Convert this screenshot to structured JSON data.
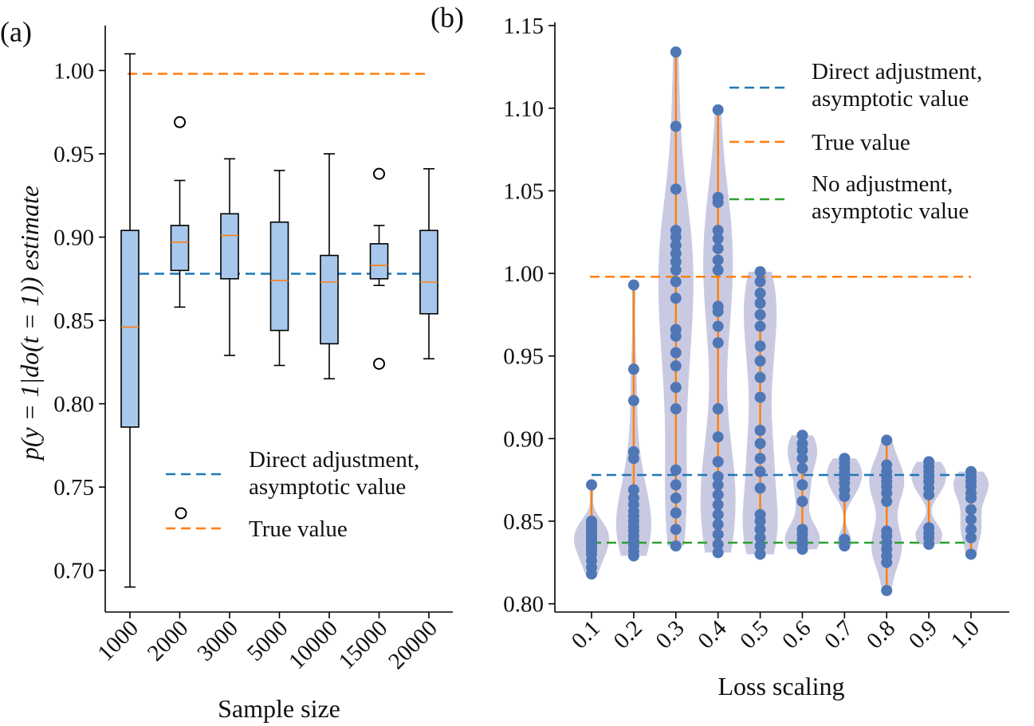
{
  "colors": {
    "box_fill": "#a7c8ec",
    "direct": "#1f77b4",
    "true": "#ff7f0e",
    "noadj": "#2ca02c",
    "violin_fill": "#b7b8d8",
    "dots": "#4f77b6",
    "whisker": "#000000"
  },
  "chart_data": [
    {
      "panel_label": "(a)",
      "type": "box",
      "xlabel": "Sample size",
      "ylabel": "p(y = 1|do(t = 1)) estimate",
      "ylim": [
        0.675,
        1.027
      ],
      "yticks": [
        "0.70",
        "0.75",
        "0.80",
        "0.85",
        "0.90",
        "0.95",
        "1.00"
      ],
      "categories": [
        "1000",
        "2000",
        "3000",
        "5000",
        "10000",
        "15000",
        "20000"
      ],
      "boxes": [
        {
          "whislo": 0.69,
          "q1": 0.786,
          "med": 0.846,
          "q3": 0.904,
          "whishi": 1.01,
          "fliers": []
        },
        {
          "whislo": 0.858,
          "q1": 0.88,
          "med": 0.897,
          "q3": 0.907,
          "whishi": 0.934,
          "fliers": [
            0.969
          ]
        },
        {
          "whislo": 0.829,
          "q1": 0.875,
          "med": 0.901,
          "q3": 0.914,
          "whishi": 0.947,
          "fliers": []
        },
        {
          "whislo": 0.823,
          "q1": 0.844,
          "med": 0.874,
          "q3": 0.909,
          "whishi": 0.94,
          "fliers": []
        },
        {
          "whislo": 0.815,
          "q1": 0.836,
          "med": 0.873,
          "q3": 0.889,
          "whishi": 0.95,
          "fliers": []
        },
        {
          "whislo": 0.871,
          "q1": 0.875,
          "med": 0.883,
          "q3": 0.896,
          "whishi": 0.907,
          "fliers": [
            0.938,
            0.824
          ]
        },
        {
          "whislo": 0.827,
          "q1": 0.854,
          "med": 0.873,
          "q3": 0.904,
          "whishi": 0.941,
          "fliers": []
        }
      ],
      "reference_lines": [
        {
          "name": "Direct adjustment, asymptotic value",
          "value": 0.878,
          "color": "#1f77b4"
        },
        {
          "name": "True value",
          "value": 0.998,
          "color": "#ff7f0e"
        }
      ],
      "legend": {
        "placement": "lower-right",
        "entries": [
          "Direct adjustment,",
          "asymptotic value",
          "True value"
        ]
      }
    },
    {
      "panel_label": "(b)",
      "type": "violin",
      "xlabel": "Loss scaling",
      "ylim": [
        0.795,
        1.152
      ],
      "yticks": [
        "0.80",
        "0.85",
        "0.90",
        "0.95",
        "1.00",
        "1.05",
        "1.10",
        "1.15"
      ],
      "categories": [
        "0.1",
        "0.2",
        "0.3",
        "0.4",
        "0.5",
        "0.6",
        "0.7",
        "0.8",
        "0.9",
        "1.0"
      ],
      "series": [
        {
          "category": "0.1",
          "values": [
            0.818,
            0.822,
            0.826,
            0.83,
            0.832,
            0.834,
            0.836,
            0.838,
            0.84,
            0.842,
            0.844,
            0.846,
            0.848,
            0.85,
            0.872
          ]
        },
        {
          "category": "0.2",
          "values": [
            0.829,
            0.832,
            0.835,
            0.838,
            0.841,
            0.844,
            0.847,
            0.85,
            0.853,
            0.856,
            0.86,
            0.864,
            0.869,
            0.888,
            0.892,
            0.923,
            0.942,
            0.993
          ]
        },
        {
          "category": "0.3",
          "values": [
            0.835,
            0.845,
            0.855,
            0.864,
            0.872,
            0.881,
            0.918,
            0.931,
            0.944,
            0.952,
            0.962,
            0.966,
            0.985,
            0.995,
            1.002,
            1.007,
            1.012,
            1.017,
            1.022,
            1.026,
            1.051,
            1.089,
            1.134
          ]
        },
        {
          "category": "0.4",
          "values": [
            0.831,
            0.836,
            0.842,
            0.848,
            0.854,
            0.86,
            0.866,
            0.872,
            0.877,
            0.886,
            0.901,
            0.918,
            0.958,
            0.968,
            0.977,
            0.98,
            1.002,
            1.008,
            1.015,
            1.021,
            1.026,
            1.043,
            1.046,
            1.099
          ]
        },
        {
          "category": "0.5",
          "values": [
            0.83,
            0.835,
            0.84,
            0.845,
            0.85,
            0.854,
            0.87,
            0.88,
            0.888,
            0.897,
            0.905,
            0.925,
            0.937,
            0.947,
            0.956,
            0.968,
            0.975,
            0.982,
            0.988,
            0.995,
            1.001
          ]
        },
        {
          "category": "0.6",
          "values": [
            0.833,
            0.836,
            0.839,
            0.842,
            0.845,
            0.862,
            0.872,
            0.882,
            0.888,
            0.893,
            0.897,
            0.902
          ]
        },
        {
          "category": "0.7",
          "values": [
            0.835,
            0.839,
            0.865,
            0.869,
            0.873,
            0.876,
            0.879,
            0.882,
            0.885,
            0.888
          ]
        },
        {
          "category": "0.8",
          "values": [
            0.808,
            0.825,
            0.829,
            0.833,
            0.837,
            0.841,
            0.844,
            0.862,
            0.867,
            0.871,
            0.874,
            0.877,
            0.88,
            0.884,
            0.899
          ]
        },
        {
          "category": "0.9",
          "values": [
            0.836,
            0.84,
            0.843,
            0.846,
            0.866,
            0.87,
            0.874,
            0.877,
            0.88,
            0.883,
            0.886
          ]
        },
        {
          "category": "1.0",
          "values": [
            0.83,
            0.84,
            0.845,
            0.851,
            0.857,
            0.864,
            0.867,
            0.871,
            0.874,
            0.877,
            0.88
          ]
        }
      ],
      "reference_lines": [
        {
          "name": "Direct adjustment, asymptotic value",
          "value": 0.878,
          "color": "#1f77b4"
        },
        {
          "name": "True value",
          "value": 0.998,
          "color": "#ff7f0e"
        },
        {
          "name": "No adjustment, asymptotic value",
          "value": 0.837,
          "color": "#2ca02c"
        }
      ],
      "legend": {
        "placement": "top-right",
        "entries": [
          "Direct adjustment,",
          "asymptotic value",
          "True value",
          "No adjustment,",
          "asymptotic value"
        ]
      }
    }
  ]
}
